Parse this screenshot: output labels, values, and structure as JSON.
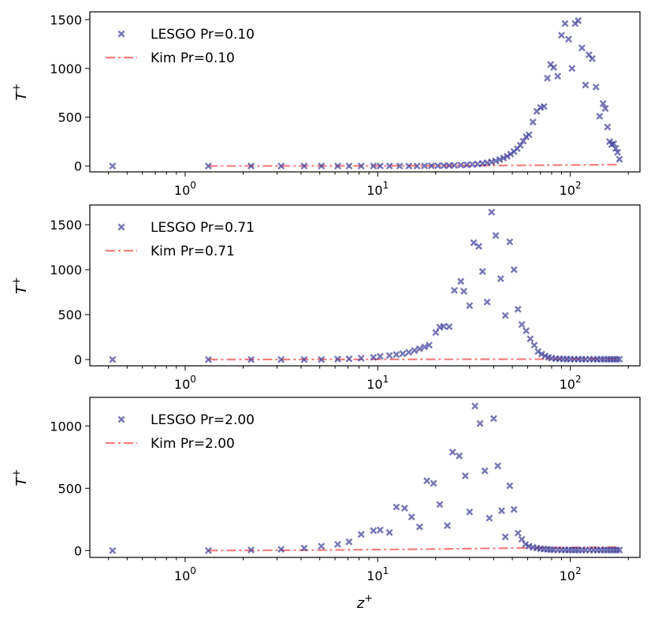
{
  "chart_data": [
    {
      "type": "scatter",
      "xscale": "log",
      "xlim": [
        0.32,
        230
      ],
      "ylim": [
        -60,
        1580
      ],
      "yticks": [
        0,
        500,
        1000,
        1500
      ],
      "ytick_labels": [
        "0",
        "500",
        "1000",
        "1500"
      ],
      "ylabel": "T",
      "ylabel_sup": "+",
      "xlabel": "",
      "legend_loc": "upper-left",
      "series": [
        {
          "name": "LESGO Pr=0.10",
          "kind": "scatter",
          "x": [
            0.42,
            1.32,
            2.2,
            3.15,
            4.15,
            5.1,
            6.2,
            7.1,
            8.2,
            9.5,
            10.3,
            11.5,
            13.0,
            14.5,
            16.0,
            17.5,
            19.0,
            20.5,
            22.0,
            23.5,
            25.0,
            27.0,
            29.0,
            31.0,
            33.0,
            35.0,
            37.0,
            39.0,
            41.0,
            43.0,
            45.0,
            47.0,
            49.0,
            51.0,
            53.0,
            55.0,
            57.0,
            59.0,
            61.0,
            64.0,
            67.0,
            70.0,
            73.0,
            76.0,
            79.0,
            82.0,
            86.0,
            90.0,
            94.0,
            98.0,
            102.0,
            106.0,
            110.0,
            115.0,
            120.0,
            125.0,
            130.0,
            136.0,
            142.0,
            148.0,
            152.0,
            156.0,
            160.0,
            164.0,
            168.0,
            172.0,
            176.0,
            180.0
          ],
          "y": [
            0,
            0,
            0,
            0,
            0,
            0,
            0,
            0,
            0,
            0,
            0,
            0,
            0,
            0,
            0,
            1,
            2,
            3,
            4,
            5,
            7,
            9,
            12,
            16,
            20,
            26,
            33,
            42,
            53,
            66,
            82,
            100,
            122,
            148,
            178,
            213,
            255,
            300,
            320,
            450,
            560,
            600,
            610,
            900,
            1040,
            1010,
            920,
            1340,
            1460,
            1300,
            1000,
            1460,
            1490,
            1210,
            830,
            1140,
            1100,
            810,
            510,
            640,
            590,
            400,
            250,
            220,
            230,
            180,
            140,
            70
          ]
        },
        {
          "name": "Kim Pr=0.10",
          "kind": "line",
          "x": [
            1.32,
            5,
            20,
            50,
            100,
            180
          ],
          "y": [
            0,
            1,
            3,
            6,
            10,
            14
          ]
        }
      ]
    },
    {
      "type": "scatter",
      "xscale": "log",
      "xlim": [
        0.32,
        230
      ],
      "ylim": [
        -70,
        1720
      ],
      "yticks": [
        0,
        500,
        1000,
        1500
      ],
      "ytick_labels": [
        "0",
        "500",
        "1000",
        "1500"
      ],
      "ylabel": "T",
      "ylabel_sup": "+",
      "xlabel": "",
      "legend_loc": "upper-left",
      "series": [
        {
          "name": "LESGO Pr=0.71",
          "kind": "scatter",
          "x": [
            0.42,
            1.32,
            2.2,
            3.15,
            4.15,
            5.1,
            6.2,
            7.1,
            8.2,
            9.5,
            10.3,
            11.5,
            12.5,
            13.5,
            14.5,
            15.5,
            16.5,
            17.5,
            18.5,
            20.0,
            21.0,
            22.0,
            23.5,
            25.0,
            27.0,
            28.0,
            30.0,
            31.5,
            33.5,
            35.0,
            37.0,
            39.0,
            41.0,
            43.5,
            46.0,
            48.5,
            51.0,
            53.5,
            56.0,
            59.0,
            62.0,
            65.0,
            68.0,
            71.0,
            74.0,
            77.0,
            80.0,
            84.0,
            88.0,
            92.0,
            96.0,
            100.0,
            105.0,
            110.0,
            115.0,
            120.0,
            126.0,
            132.0,
            138.0,
            144.0,
            150.0,
            156.0,
            162.0,
            168.0,
            174.0,
            180.0
          ],
          "y": [
            0,
            0,
            0,
            0,
            0,
            0,
            5,
            8,
            15,
            25,
            35,
            45,
            55,
            65,
            80,
            100,
            120,
            140,
            160,
            300,
            360,
            370,
            365,
            770,
            870,
            760,
            600,
            1300,
            1260,
            980,
            640,
            1640,
            1380,
            900,
            490,
            1310,
            1000,
            560,
            390,
            320,
            230,
            160,
            90,
            60,
            40,
            25,
            15,
            10,
            8,
            6,
            5,
            4,
            4,
            4,
            3,
            3,
            3,
            3,
            3,
            3,
            3,
            3,
            3,
            3,
            3,
            3
          ]
        },
        {
          "name": "Kim Pr=0.71",
          "kind": "line",
          "x": [
            1.32,
            5,
            20,
            50,
            100,
            180
          ],
          "y": [
            0,
            1,
            3,
            4,
            5,
            6
          ]
        }
      ]
    },
    {
      "type": "scatter",
      "xscale": "log",
      "xlim": [
        0.32,
        230
      ],
      "ylim": [
        -55,
        1230
      ],
      "yticks": [
        0,
        500,
        1000
      ],
      "ytick_labels": [
        "0",
        "500",
        "1000"
      ],
      "ylabel": "T",
      "ylabel_sup": "+",
      "xlabel": "z",
      "xlabel_sup": "+",
      "legend_loc": "upper-left",
      "series": [
        {
          "name": "LESGO Pr=2.00",
          "kind": "scatter",
          "x": [
            0.42,
            1.32,
            2.2,
            3.15,
            4.15,
            5.1,
            6.2,
            7.1,
            8.2,
            9.5,
            10.3,
            11.5,
            12.5,
            13.8,
            15.0,
            16.5,
            18.0,
            19.5,
            21.0,
            23.0,
            24.5,
            26.5,
            28.5,
            30.0,
            32.0,
            34.0,
            36.0,
            38.0,
            40.0,
            42.0,
            44.0,
            46.0,
            48.5,
            51.0,
            53.5,
            56.0,
            58.5,
            61.0,
            64.0,
            67.0,
            70.0,
            73.0,
            76.0,
            79.0,
            82.0,
            86.0,
            90.0,
            94.0,
            98.0,
            102.0,
            106.0,
            110.0,
            115.0,
            120.0,
            126.0,
            132.0,
            138.0,
            144.0,
            150.0,
            156.0,
            162.0,
            168.0,
            174.0,
            180.0
          ],
          "y": [
            0,
            0,
            5,
            10,
            20,
            35,
            50,
            70,
            130,
            160,
            165,
            145,
            350,
            340,
            270,
            190,
            560,
            540,
            370,
            200,
            790,
            760,
            600,
            310,
            1160,
            1020,
            640,
            260,
            1060,
            680,
            320,
            110,
            520,
            330,
            140,
            90,
            50,
            35,
            25,
            20,
            15,
            12,
            10,
            8,
            6,
            5,
            5,
            5,
            4,
            4,
            4,
            4,
            4,
            4,
            4,
            4,
            4,
            4,
            4,
            4,
            4,
            4,
            4,
            4
          ]
        },
        {
          "name": "Kim Pr=2.00",
          "kind": "line",
          "x": [
            1.32,
            5,
            20,
            50,
            100,
            180
          ],
          "y": [
            0,
            4,
            12,
            20,
            25,
            27
          ]
        }
      ]
    }
  ],
  "xtick_labels": {
    "p0": {
      "base": "10",
      "exp": "0"
    },
    "p1": {
      "base": "10",
      "exp": "1"
    },
    "p2": {
      "base": "10",
      "exp": "2"
    }
  },
  "colors": {
    "lesgo": "#3b3b9a",
    "kim": "#f08080"
  }
}
